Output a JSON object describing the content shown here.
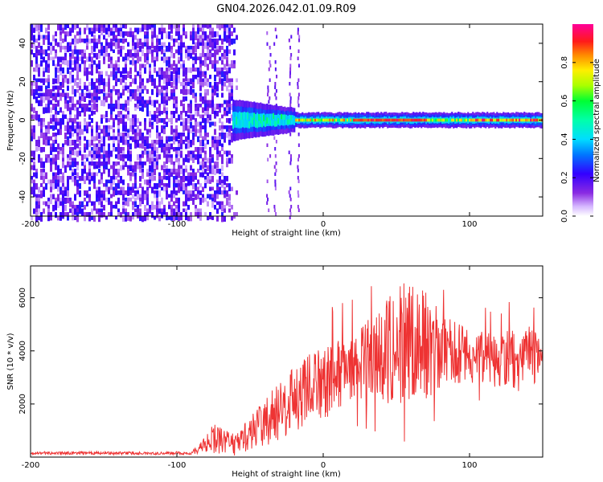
{
  "figure_title": "GN04.2026.042.01.09.R09",
  "chart_data": [
    {
      "type": "heatmap",
      "title": "GN04.2026.042.01.09.R09",
      "xlabel": "Height of straight line (km)",
      "ylabel": "Frequency (Hz)",
      "xlim": [
        -200,
        150
      ],
      "ylim": [
        -50,
        50
      ],
      "xticks": [
        -200,
        -100,
        0,
        100
      ],
      "yticks": [
        -40,
        -20,
        0,
        20,
        40
      ],
      "colorbar": {
        "label": "Normalized spectral amplitude",
        "range": [
          0,
          1
        ],
        "ticks": [
          0.0,
          0.2,
          0.4,
          0.6,
          0.8
        ],
        "tick_labels": [
          "0.0",
          "0.2",
          "0.4",
          "0.6",
          "0.8"
        ],
        "colormap": "rainbow (white→violet→blue→cyan→green→yellow→red→magenta)"
      },
      "regions": [
        {
          "x_range": [
            -200,
            -62
          ],
          "description": "broadband noise",
          "amplitude_range": [
            0.05,
            0.25
          ]
        },
        {
          "x_range": [
            -62,
            -20
          ],
          "freq_center": 0,
          "freq_halfwidth": 6,
          "amplitude_range": [
            0.2,
            0.55
          ]
        },
        {
          "x_range": [
            -20,
            150
          ],
          "freq_center": 0,
          "freq_halfwidth": 2,
          "amplitude_range": [
            0.5,
            1.0
          ]
        }
      ]
    },
    {
      "type": "line",
      "xlabel": "Height of straight line (km)",
      "ylabel": "SNR (10 * v/v)",
      "xlim": [
        -200,
        150
      ],
      "ylim": [
        0,
        7200
      ],
      "xticks": [
        -200,
        -100,
        0,
        100
      ],
      "yticks": [
        2000,
        4000,
        6000
      ],
      "series": [
        {
          "name": "SNR",
          "color": "#ee3333",
          "envelope_x": [
            -200,
            -90,
            -80,
            -75,
            -60,
            -40,
            -20,
            0,
            20,
            35,
            50,
            60,
            70,
            80,
            100,
            120,
            140,
            150
          ],
          "envelope_mean": [
            150,
            150,
            500,
            700,
            450,
            1300,
            2200,
            2800,
            3300,
            3700,
            4300,
            4400,
            4200,
            4000,
            3800,
            3600,
            3700,
            3900
          ],
          "envelope_amp": [
            60,
            60,
            300,
            600,
            400,
            900,
            1300,
            1400,
            1300,
            1700,
            2300,
            2400,
            2000,
            1500,
            1000,
            1000,
            1400,
            500
          ]
        }
      ]
    }
  ]
}
